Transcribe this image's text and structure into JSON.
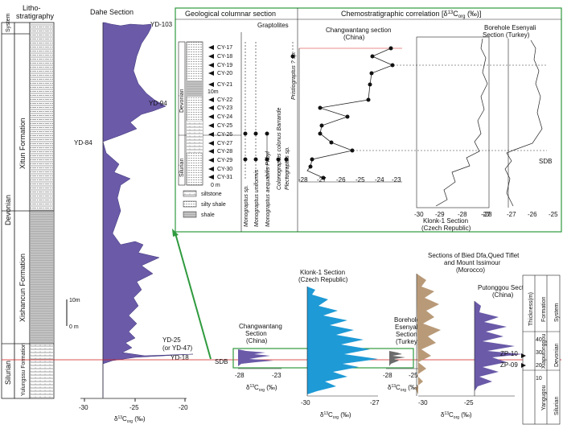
{
  "left_column": {
    "system_header": "System",
    "litho_header": "Litho-\nstratigraphy",
    "devonian": "Devonian",
    "silurian": "Silurian",
    "xitun": "Xitun Formation",
    "xishancun": "Xishancun Formation",
    "yulungssu": "Yulungssu Formation",
    "scale_10m": "10m",
    "scale_0m": "0 m"
  },
  "dahe": {
    "title": "Dahe Section",
    "labels": [
      "YD-103",
      "YD-94",
      "YD-84",
      "YD-25\n(or YD-47)",
      "YD-18"
    ],
    "xticks": [
      "-30",
      "-25",
      "-20"
    ],
    "xlabel": "δ13Corg (‰)"
  },
  "sdb": "SDB",
  "geo_box": {
    "title": "Geological columnar section",
    "graptolites": "Graptolites",
    "devonian": "Devonian",
    "silurian": "Silurian",
    "scale_10m": "10m",
    "scale_0m": "0 m",
    "samples": [
      "CY-17",
      "CY-18",
      "CY-19",
      "CY-20",
      "CY-21",
      "CY-22",
      "CY-23",
      "CY-24",
      "CY-25",
      "CY-26",
      "CY-27",
      "CY-28",
      "CY-29",
      "CY-30",
      "CY-31"
    ],
    "legend": [
      "siltstone",
      "silty shale",
      "shale"
    ],
    "species": [
      "Monograptus sp.",
      "Monograptus uniformis",
      "Monograptus aequabilis Přibyl",
      "Colonograptus colonus Barrande",
      "Plectograptus sp.",
      "Pristiograptus ? sp."
    ]
  },
  "chemo_box": {
    "title": "Chemostratigraphic correlation [δ13Corg (‰)]",
    "changwantang_title": "Changwantang section\n(China)",
    "changwantang_ticks": [
      "-28",
      "-27",
      "-26",
      "-25",
      "-24",
      "-23"
    ],
    "borehole_title": "Borehole Esenyali\nSection (Turkey)",
    "borehole_ticks": [
      "-28",
      "-27",
      "-26",
      "-25"
    ],
    "klonk_ticks": [
      "-30",
      "-29",
      "-28",
      "-27"
    ],
    "klonk_title": "Klonk-1 Section\n(Czech Republic)",
    "sdb": "SDB"
  },
  "bottom": {
    "changwantang": "Changwantang\nSection\n(China)",
    "changwantang_ticks": [
      "-28",
      "-23"
    ],
    "klonk": "Klonk-1 Section\n(Czech Republic)",
    "klonk_ticks": [
      "-30",
      "-27"
    ],
    "borehole": "Borehole\nEsenyali\nSection\n(Turkey)",
    "borehole_ticks": [
      "-28",
      "-25"
    ],
    "morocco": "Sections of Bied Dfa,Qued Tiflet\nand Mount Issimour\n(Morocco)",
    "putonggou": "Putonggou Section\n(China)",
    "bottom_ticks": [
      "-30",
      "-25"
    ],
    "xlabel": "δ13Corg (‰)"
  },
  "right_panel": {
    "system": "System",
    "formation": "Formation",
    "thickness": "Thickness(m)",
    "devonian": "Devonian",
    "silurian": "Silurian",
    "xiaputonggou": "Xiaputonggou",
    "yangugou": "Yangugou",
    "ticks": [
      "40",
      "30",
      "20",
      "10"
    ],
    "zp10": "ZP-10",
    "zp09": "ZP-09"
  },
  "colors": {
    "purple": "#6a5aa8",
    "blue": "#1e9ad6",
    "tan": "#b99a78",
    "green": "#2f9a3e",
    "red": "#d21e1e"
  }
}
